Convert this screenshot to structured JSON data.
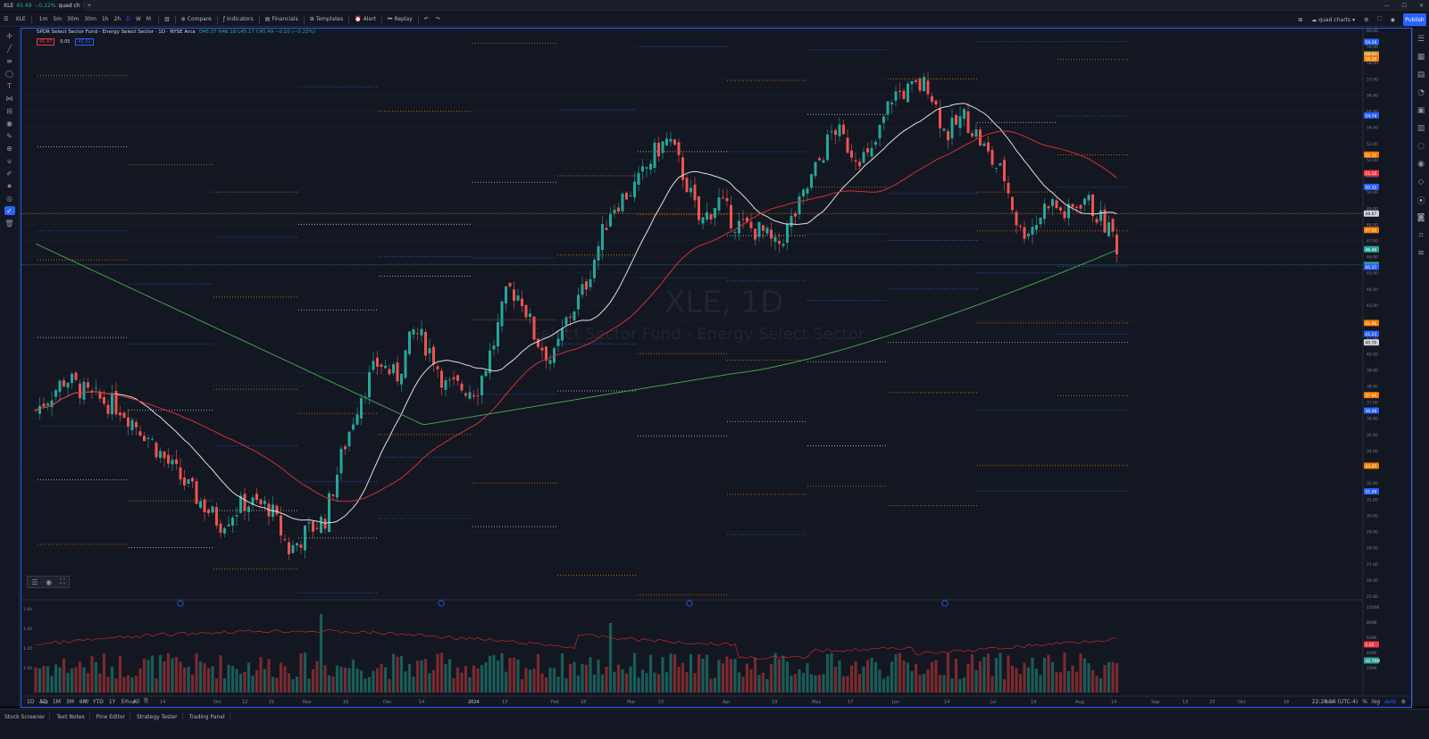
{
  "tabbar": {
    "tab_symbol": "XLE",
    "tab_price": "45.49",
    "tab_change": "−0.22%",
    "tab_layout": "quad ch",
    "new_tab": "+"
  },
  "toolbar": {
    "symbol": "XLE",
    "timeframes": [
      "1m",
      "5m",
      "30m",
      "30m",
      "1h",
      "2h",
      "D",
      "W",
      "M"
    ],
    "compare": "Compare",
    "indicators": "Indicators",
    "financials": "Financials",
    "templates": "Templates",
    "alert": "Alert",
    "replay": "Replay",
    "layout_name": "quad charts",
    "publish": "Publish"
  },
  "legend": {
    "title": "SPDR Select Sector Fund - Energy Select Sector · 1D · NYSE Arca",
    "ohlc": "O45.37 H46.18 L45.17 C45.49 −0.10 (−0.22%)",
    "bid": "45.47",
    "spread": "0.05",
    "ask": "45.52"
  },
  "watermark": {
    "symbol": "XLE, 1D",
    "name": "Select Sector Fund - Energy Select Sector"
  },
  "price_axis": [
    "60.00",
    "59.00",
    "58.00",
    "57.00",
    "56.00",
    "55.00",
    "54.00",
    "53.00",
    "52.00",
    "51.00",
    "50.00",
    "49.00",
    "48.00",
    "47.00",
    "46.00",
    "45.00",
    "44.00",
    "43.00",
    "42.00",
    "41.00",
    "40.00",
    "39.00",
    "38.00",
    "37.00",
    "36.00",
    "35.00",
    "34.00",
    "33.00",
    "32.00",
    "31.00",
    "30.00",
    "29.00",
    "28.00",
    "27.00",
    "26.00",
    "25.00"
  ],
  "price_tags": [
    {
      "label": "59.29",
      "color": "#2962ff"
    },
    {
      "label": "58.51",
      "color": "#c9a03c"
    },
    {
      "label": "58.26",
      "color": "#f57c00"
    },
    {
      "label": "54.74",
      "color": "#2962ff"
    },
    {
      "label": "52.31",
      "color": "#f57c00"
    },
    {
      "label": "51.16",
      "color": "#f23645"
    },
    {
      "label": "50.32",
      "color": "#2962ff"
    },
    {
      "label": "48.67",
      "color": "#d1d4dc"
    },
    {
      "label": "47.65",
      "color": "#f57c00"
    },
    {
      "label": "46.46",
      "color": "#26a69a"
    },
    {
      "label": "45.49",
      "color": "#26a69a"
    },
    {
      "label": "45.37",
      "color": "#2962ff"
    },
    {
      "label": "41.90",
      "color": "#f57c00"
    },
    {
      "label": "41.23",
      "color": "#2962ff"
    },
    {
      "label": "40.70",
      "color": "#d1d4dc"
    },
    {
      "label": "37.44",
      "color": "#f57c00"
    },
    {
      "label": "36.48",
      "color": "#2962ff"
    },
    {
      "label": "33.07",
      "color": "#f57c00"
    },
    {
      "label": "31.49",
      "color": "#2962ff"
    },
    {
      "label": "1.25",
      "color": "#f23645"
    },
    {
      "label": "30.79M",
      "color": "#26a69a"
    }
  ],
  "volume_axis": [
    "1000K",
    "800K",
    "600K",
    "400K",
    "200K"
  ],
  "ratio_axis": [
    "1.60",
    "1.40",
    "1.20",
    "1.00"
  ],
  "time_axis": [
    "Aug",
    "17",
    "Sep",
    "14",
    "Oct",
    "12",
    "21",
    "Nov",
    "16",
    "Dec",
    "14",
    "2024",
    "13",
    "Feb",
    "18",
    "Mar",
    "15",
    "Apr",
    "19",
    "May",
    "17",
    "Jun",
    "14",
    "Jul",
    "19",
    "Aug",
    "14",
    "Sep",
    "13",
    "23",
    "Oct",
    "18",
    "Nov"
  ],
  "bottom_timeframes": [
    "1D",
    "5D",
    "1M",
    "3M",
    "6M",
    "YTD",
    "1Y",
    "5Y",
    "All"
  ],
  "bottom_right": {
    "clock": "22:28:06 (UTC-4)",
    "pct": "%",
    "log": "log",
    "auto": "auto"
  },
  "bottom_panels": [
    "Stock Screener",
    "Text Notes",
    "Pine Editor",
    "Strategy Tester",
    "Trading Panel"
  ],
  "colors": {
    "up": "#26a69a",
    "down": "#ef5350",
    "sma_fast": "#e0e0e0",
    "sma_mid": "#d32f2f",
    "sma_slow": "#43a047",
    "accent": "#2962ff",
    "background": "#131722"
  },
  "icons": [
    "menu-icon",
    "crosshair-icon",
    "trendline-icon",
    "fib-icon",
    "shapes-icon",
    "text-icon",
    "pattern-icon",
    "measure-icon",
    "eye-icon",
    "brush-icon",
    "zoom-icon",
    "magnet-icon",
    "lock-icon",
    "trash-icon"
  ]
}
